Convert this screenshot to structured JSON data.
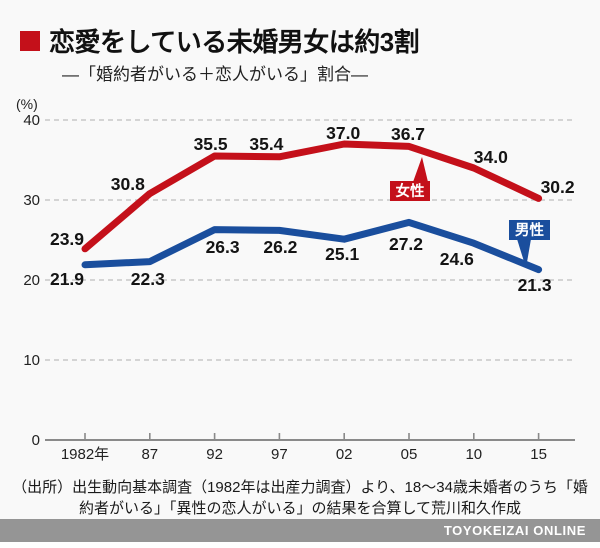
{
  "header": {
    "title": "恋愛をしている未婚男女は約3割",
    "subtitle": "―「婚約者がいる＋恋人がいる」割合―"
  },
  "chart_data": {
    "type": "line",
    "unit_label": "(%)",
    "categories": [
      "1982年",
      "87",
      "92",
      "97",
      "02",
      "05",
      "10",
      "15"
    ],
    "y_ticks": [
      0,
      10,
      20,
      30,
      40
    ],
    "ylim": [
      0,
      40
    ],
    "grid": "horizontal-dashed",
    "legend_position": "inline-callouts",
    "series": [
      {
        "name": "女性",
        "color": "#c4101a",
        "values": [
          23.9,
          30.8,
          35.5,
          35.4,
          37.0,
          36.7,
          34.0,
          30.2
        ]
      },
      {
        "name": "男性",
        "color": "#1a4e9d",
        "values": [
          21.9,
          22.3,
          26.3,
          26.2,
          25.1,
          27.2,
          24.6,
          21.3
        ]
      }
    ]
  },
  "footer": {
    "lines": [
      "（出所）出生動向基本調査（1982年は出産力調査）より、18～34歳未婚者のうち「婚",
      "約者がいる」「異性の恋人がいる」の結果を合算して荒川和久作成"
    ]
  },
  "brand": {
    "label": "TOYOKEIZAI ONLINE"
  },
  "colors": {
    "female": "#c4101a",
    "male": "#1a4e9d",
    "accent_square": "#c4101a",
    "brand_bar": "#959595",
    "gridline": "#c7c7c7",
    "axis": "#8a8a8a"
  }
}
